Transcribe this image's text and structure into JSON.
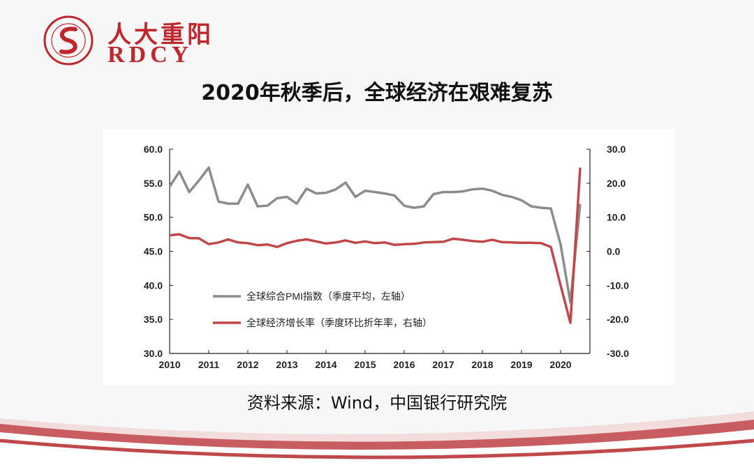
{
  "logo": {
    "cn": "人大重阳",
    "en": "RDCY"
  },
  "title": "2020年秋季后，全球经济在艰难复苏",
  "source": "资料来源：Wind，中国银行研究院",
  "colors": {
    "brand": "#c0272d",
    "pmi": "#8c8c8c",
    "gdp": "#c0474a",
    "footer": "#c0474a"
  },
  "chart_data": {
    "type": "line",
    "x_ticks": [
      "2010",
      "2011",
      "2012",
      "2013",
      "2014",
      "2015",
      "2016",
      "2017",
      "2018",
      "2019",
      "2020"
    ],
    "y_left": {
      "min": 30,
      "max": 60,
      "ticks": [
        "60.0",
        "55.0",
        "50.0",
        "45.0",
        "40.0",
        "35.0",
        "30.0"
      ]
    },
    "y_right": {
      "min": -30,
      "max": 30,
      "ticks": [
        "30.0",
        "20.0",
        "10.0",
        "0.0",
        "-10.0",
        "-20.0",
        "-30.0"
      ]
    },
    "grid": false,
    "legend_position": "bottom-left",
    "series": [
      {
        "name": "全球综合PMI指数（季度平均，左轴）",
        "axis": "left",
        "x": [
          2010.0,
          2010.25,
          2010.5,
          2010.75,
          2011.0,
          2011.25,
          2011.5,
          2011.75,
          2012.0,
          2012.25,
          2012.5,
          2012.75,
          2013.0,
          2013.25,
          2013.5,
          2013.75,
          2014.0,
          2014.25,
          2014.5,
          2014.75,
          2015.0,
          2015.25,
          2015.5,
          2015.75,
          2016.0,
          2016.25,
          2016.5,
          2016.75,
          2017.0,
          2017.25,
          2017.5,
          2017.75,
          2018.0,
          2018.25,
          2018.5,
          2018.75,
          2019.0,
          2019.25,
          2019.5,
          2019.75,
          2020.0,
          2020.25,
          2020.5
        ],
        "values": [
          54.5,
          56.7,
          53.7,
          55.4,
          57.3,
          52.3,
          52.0,
          52.0,
          54.8,
          51.6,
          51.7,
          52.8,
          53.0,
          52.0,
          54.2,
          53.5,
          53.6,
          54.1,
          55.1,
          53.0,
          53.9,
          53.7,
          53.5,
          53.2,
          51.7,
          51.4,
          51.6,
          53.4,
          53.7,
          53.7,
          53.8,
          54.1,
          54.2,
          53.9,
          53.3,
          53.0,
          52.5,
          51.6,
          51.4,
          51.3,
          46.0,
          37.5,
          51.9
        ]
      },
      {
        "name": "全球经济增长率（季度环比折年率，右轴）",
        "axis": "right",
        "x": [
          2010.0,
          2010.25,
          2010.5,
          2010.75,
          2011.0,
          2011.25,
          2011.5,
          2011.75,
          2012.0,
          2012.25,
          2012.5,
          2012.75,
          2013.0,
          2013.25,
          2013.5,
          2013.75,
          2014.0,
          2014.25,
          2014.5,
          2014.75,
          2015.0,
          2015.25,
          2015.5,
          2015.75,
          2016.0,
          2016.25,
          2016.5,
          2016.75,
          2017.0,
          2017.25,
          2017.5,
          2017.75,
          2018.0,
          2018.25,
          2018.5,
          2018.75,
          2019.0,
          2019.25,
          2019.5,
          2019.75,
          2020.0,
          2020.25,
          2020.5
        ],
        "values": [
          4.7,
          5.0,
          3.9,
          3.8,
          2.1,
          2.6,
          3.5,
          2.6,
          2.4,
          1.8,
          2.0,
          1.3,
          2.4,
          3.1,
          3.5,
          2.9,
          2.3,
          2.6,
          3.2,
          2.5,
          2.9,
          2.4,
          2.6,
          1.9,
          2.1,
          2.2,
          2.6,
          2.7,
          2.8,
          3.7,
          3.4,
          3.0,
          2.8,
          3.4,
          2.7,
          2.6,
          2.5,
          2.5,
          2.4,
          1.3,
          -10.0,
          -21.0,
          24.5
        ]
      }
    ]
  }
}
